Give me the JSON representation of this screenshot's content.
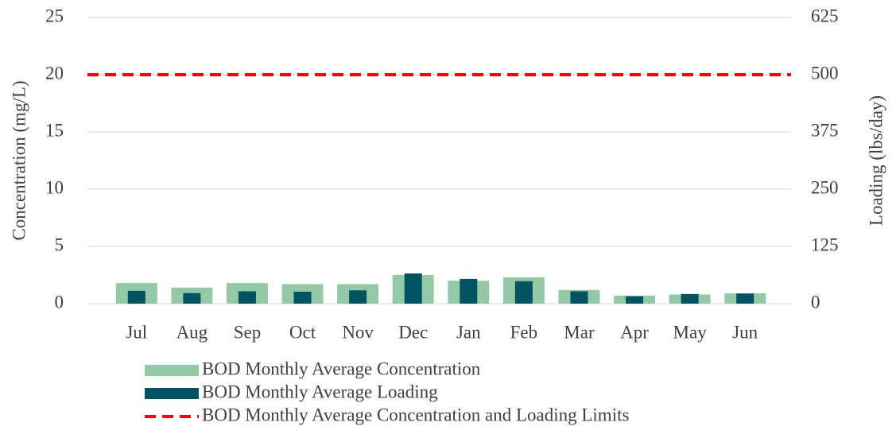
{
  "chart_data": {
    "type": "bar",
    "categories": [
      "Jul",
      "Aug",
      "Sep",
      "Oct",
      "Nov",
      "Dec",
      "Jan",
      "Feb",
      "Mar",
      "Apr",
      "May",
      "Jun"
    ],
    "series": [
      {
        "name": "BOD Monthly Average Concentration",
        "color": "#93c9a7",
        "values": [
          1.8,
          1.4,
          1.8,
          1.7,
          1.7,
          2.5,
          2.0,
          2.3,
          1.2,
          0.7,
          0.8,
          0.9
        ]
      },
      {
        "name": "BOD Monthly Average Loading",
        "color": "#005462",
        "axis": "y2",
        "values": [
          28,
          23,
          27,
          26,
          29,
          66,
          54,
          49,
          27,
          16,
          21,
          22
        ]
      }
    ],
    "limit_line": {
      "name": "BOD Monthly Average Concentration and Loading Limits",
      "color": "#ff0000",
      "value": 20
    },
    "y_label": "Concentration (mg/L)",
    "y2_label": "Loading (lbs/day)",
    "ylim": [
      0,
      25
    ],
    "yticks": [
      0,
      5,
      10,
      15,
      20,
      25
    ],
    "y2lim": [
      0,
      625
    ],
    "y2ticks": [
      0,
      125,
      250,
      375,
      500,
      625
    ],
    "grid": true
  }
}
